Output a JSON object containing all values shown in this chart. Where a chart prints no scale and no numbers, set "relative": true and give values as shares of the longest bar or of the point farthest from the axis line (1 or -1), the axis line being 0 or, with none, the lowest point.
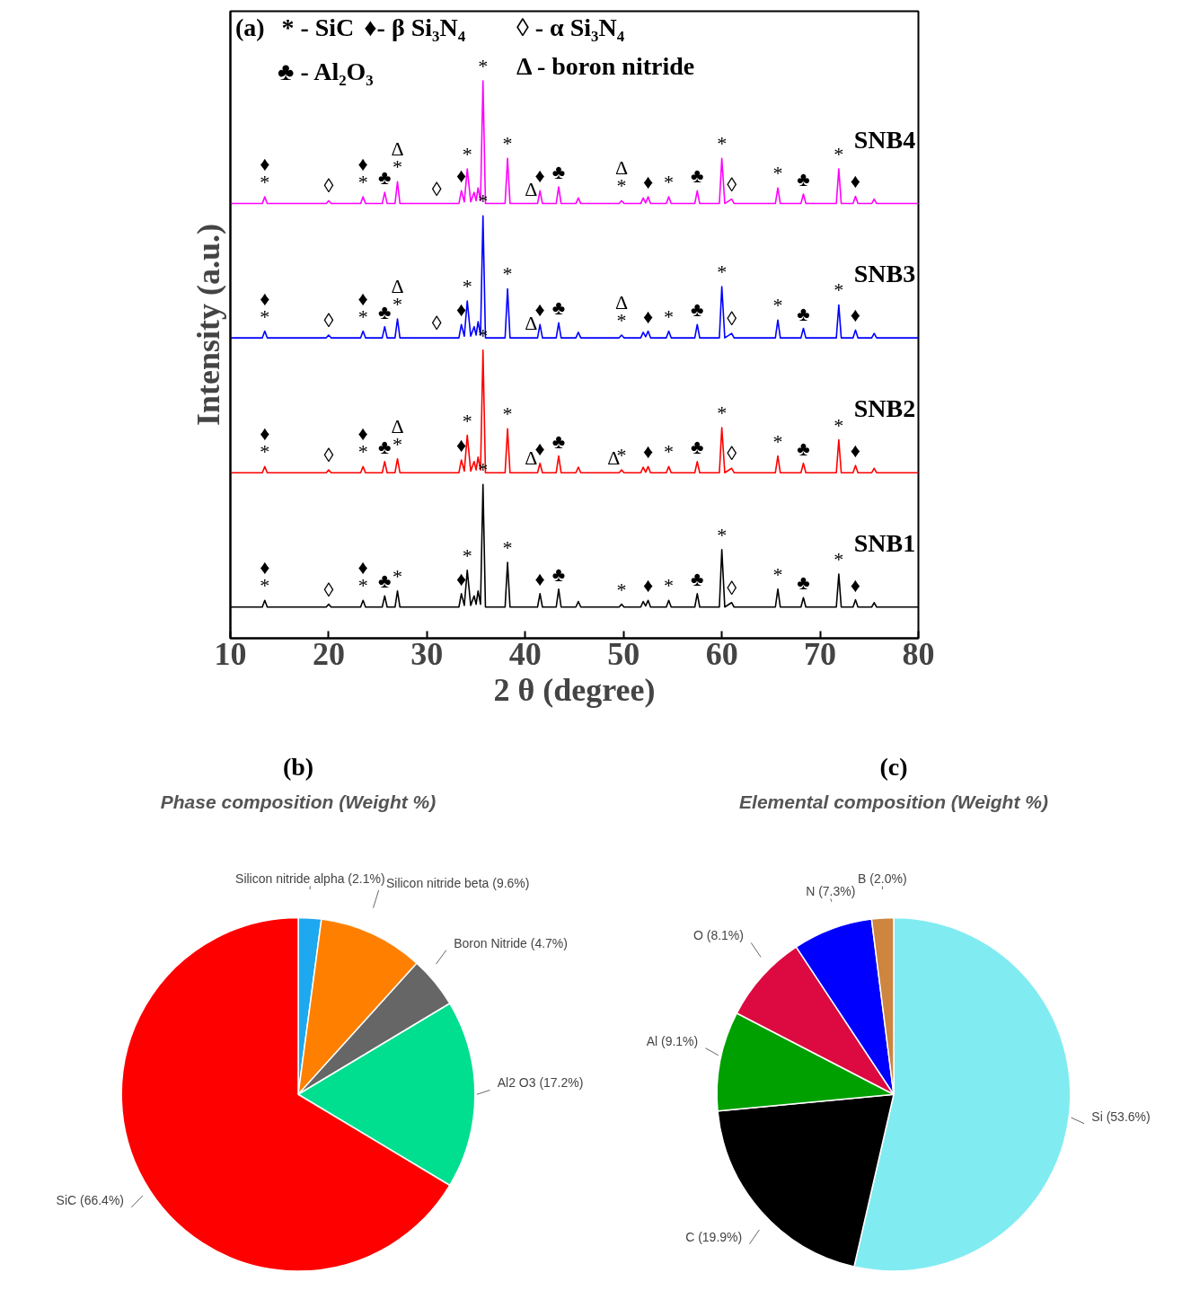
{
  "chart_data": [
    {
      "type": "line",
      "title": null,
      "xlabel": "2 θ (degree)",
      "ylabel": "Intensity (a.u.)",
      "relative": true,
      "grid": false,
      "xlim": [
        10,
        80
      ],
      "xticks": [
        10,
        20,
        30,
        40,
        50,
        60,
        70,
        80
      ],
      "x": [
        10,
        13.25,
        13.5,
        13.75,
        19.75,
        20,
        20.25,
        23.25,
        23.5,
        23.75,
        25.45,
        25.7,
        25.95,
        26.75,
        27,
        27.25,
        33.25,
        33.5,
        33.8,
        34.1,
        34.45,
        34.8,
        35.0,
        35.2,
        35.45,
        35.7,
        35.95,
        37.95,
        38.2,
        38.45,
        41.25,
        41.5,
        41.75,
        43.15,
        43.4,
        43.65,
        45.15,
        45.4,
        45.65,
        49.55,
        49.8,
        50.05,
        51.75,
        52,
        52.25,
        52.5,
        52.75,
        54.35,
        54.6,
        54.85,
        57.25,
        57.5,
        57.75,
        59.75,
        60,
        60.3,
        61,
        61.25,
        65.45,
        65.7,
        65.95,
        68.05,
        68.3,
        68.55,
        71.65,
        71.9,
        72.15,
        73.35,
        73.6,
        73.85,
        75.25,
        75.5,
        75.75,
        80
      ],
      "series": [
        {
          "name": "SNB1",
          "color": "#000000",
          "values": [
            0.056,
            0.056,
            0.068,
            0.056,
            0.056,
            0.061,
            0.056,
            0.056,
            0.068,
            0.056,
            0.056,
            0.076,
            0.056,
            0.056,
            0.085,
            0.056,
            0.056,
            0.08,
            0.059,
            0.122,
            0.059,
            0.076,
            0.061,
            0.085,
            0.061,
            0.276,
            0.056,
            0.056,
            0.136,
            0.056,
            0.056,
            0.08,
            0.056,
            0.056,
            0.088,
            0.056,
            0.056,
            0.066,
            0.056,
            0.056,
            0.061,
            0.056,
            0.056,
            0.066,
            0.058,
            0.068,
            0.056,
            0.056,
            0.068,
            0.056,
            0.056,
            0.08,
            0.056,
            0.056,
            0.159,
            0.056,
            0.064,
            0.056,
            0.056,
            0.088,
            0.056,
            0.056,
            0.073,
            0.056,
            0.056,
            0.115,
            0.056,
            0.056,
            0.069,
            0.056,
            0.056,
            0.064,
            0.056,
            0.056
          ]
        },
        {
          "name": "SNB2",
          "color": "#ff0000",
          "values": [
            0.297,
            0.297,
            0.308,
            0.297,
            0.297,
            0.302,
            0.297,
            0.297,
            0.308,
            0.297,
            0.297,
            0.317,
            0.297,
            0.297,
            0.322,
            0.297,
            0.297,
            0.32,
            0.3,
            0.364,
            0.3,
            0.317,
            0.302,
            0.325,
            0.302,
            0.517,
            0.297,
            0.297,
            0.376,
            0.297,
            0.297,
            0.314,
            0.297,
            0.297,
            0.327,
            0.297,
            0.297,
            0.307,
            0.297,
            0.297,
            0.302,
            0.297,
            0.297,
            0.307,
            0.298,
            0.308,
            0.297,
            0.297,
            0.308,
            0.297,
            0.297,
            0.317,
            0.297,
            0.297,
            0.378,
            0.297,
            0.305,
            0.297,
            0.297,
            0.327,
            0.297,
            0.297,
            0.314,
            0.297,
            0.297,
            0.356,
            0.297,
            0.297,
            0.31,
            0.297,
            0.297,
            0.305,
            0.297,
            0.297
          ]
        },
        {
          "name": "SNB3",
          "color": "#0000ff",
          "values": [
            0.539,
            0.539,
            0.551,
            0.539,
            0.539,
            0.544,
            0.539,
            0.539,
            0.551,
            0.539,
            0.539,
            0.559,
            0.539,
            0.539,
            0.573,
            0.539,
            0.539,
            0.563,
            0.542,
            0.605,
            0.542,
            0.559,
            0.544,
            0.568,
            0.544,
            0.758,
            0.539,
            0.539,
            0.627,
            0.539,
            0.539,
            0.563,
            0.539,
            0.539,
            0.566,
            0.539,
            0.539,
            0.549,
            0.539,
            0.539,
            0.544,
            0.539,
            0.539,
            0.549,
            0.541,
            0.551,
            0.539,
            0.539,
            0.551,
            0.539,
            0.539,
            0.563,
            0.539,
            0.539,
            0.631,
            0.539,
            0.547,
            0.539,
            0.539,
            0.571,
            0.539,
            0.539,
            0.556,
            0.539,
            0.539,
            0.598,
            0.539,
            0.539,
            0.553,
            0.539,
            0.539,
            0.547,
            0.539,
            0.539
          ]
        },
        {
          "name": "SNB4",
          "color": "#ff00ff",
          "values": [
            0.78,
            0.78,
            0.792,
            0.78,
            0.78,
            0.785,
            0.78,
            0.78,
            0.792,
            0.78,
            0.78,
            0.8,
            0.78,
            0.78,
            0.819,
            0.78,
            0.78,
            0.803,
            0.783,
            0.842,
            0.783,
            0.8,
            0.785,
            0.808,
            0.785,
            1.0,
            0.78,
            0.78,
            0.861,
            0.78,
            0.78,
            0.803,
            0.78,
            0.78,
            0.81,
            0.78,
            0.78,
            0.79,
            0.78,
            0.78,
            0.785,
            0.78,
            0.78,
            0.79,
            0.781,
            0.792,
            0.78,
            0.78,
            0.792,
            0.78,
            0.78,
            0.803,
            0.78,
            0.78,
            0.861,
            0.78,
            0.788,
            0.78,
            0.78,
            0.808,
            0.78,
            0.78,
            0.797,
            0.78,
            0.78,
            0.842,
            0.78,
            0.78,
            0.793,
            0.78,
            0.78,
            0.788,
            0.78,
            0.78
          ]
        }
      ],
      "annotations": [
        "(a)",
        "* - SiC",
        "♦- β Si₃N₄",
        "◊ - α Si₃N₄",
        "♣ - Al₂O₃",
        "Δ - boron nitride",
        {
          "text": "*",
          "x": 13.5,
          "y": 0.068
        },
        {
          "text": "♦",
          "x": 13.5,
          "y": 0.068
        },
        {
          "text": "◊",
          "x": 20,
          "y": 0.061
        },
        {
          "text": "*",
          "x": 23.5,
          "y": 0.068
        },
        {
          "text": "♦",
          "x": 23.5,
          "y": 0.068
        },
        {
          "text": "♣",
          "x": 25.7,
          "y": 0.076
        },
        {
          "text": "*",
          "x": 27,
          "y": 0.085
        },
        {
          "text": "♦",
          "x": 33.5,
          "y": 0.08
        },
        {
          "text": "*",
          "x": 34.1,
          "y": 0.122
        },
        {
          "text": "*",
          "x": 35.7,
          "y": 0.276
        },
        {
          "text": "*",
          "x": 38.2,
          "y": 0.136
        },
        {
          "text": "♦",
          "x": 41.5,
          "y": 0.08
        },
        {
          "text": "♣",
          "x": 43.4,
          "y": 0.088
        },
        {
          "text": "*",
          "x": 49.8,
          "y": 0.061
        },
        {
          "text": "♦",
          "x": 52.5,
          "y": 0.068
        },
        {
          "text": "*",
          "x": 54.6,
          "y": 0.068
        },
        {
          "text": "♣",
          "x": 57.5,
          "y": 0.08
        },
        {
          "text": "*",
          "x": 60,
          "y": 0.159
        },
        {
          "text": "◊",
          "x": 61,
          "y": 0.064
        },
        {
          "text": "*",
          "x": 65.7,
          "y": 0.088
        },
        {
          "text": "♣",
          "x": 68.3,
          "y": 0.073
        },
        {
          "text": "*",
          "x": 71.9,
          "y": 0.115
        },
        {
          "text": "♦",
          "x": 73.6,
          "y": 0.069
        },
        {
          "text": "*",
          "x": 13.5,
          "y": 0.308
        },
        {
          "text": "♦",
          "x": 13.5,
          "y": 0.308
        },
        {
          "text": "◊",
          "x": 20,
          "y": 0.302
        },
        {
          "text": "*",
          "x": 23.5,
          "y": 0.308
        },
        {
          "text": "♦",
          "x": 23.5,
          "y": 0.308
        },
        {
          "text": "♣",
          "x": 25.7,
          "y": 0.317
        },
        {
          "text": "*",
          "x": 27,
          "y": 0.322
        },
        {
          "text": "Δ",
          "x": 27,
          "y": 0.322
        },
        {
          "text": "♦",
          "x": 33.5,
          "y": 0.32
        },
        {
          "text": "*",
          "x": 34.1,
          "y": 0.364
        },
        {
          "text": "*",
          "x": 35.7,
          "y": 0.517
        },
        {
          "text": "*",
          "x": 38.2,
          "y": 0.376
        },
        {
          "text": "Δ",
          "x": 40.6,
          "y": 0.297
        },
        {
          "text": "♦",
          "x": 41.5,
          "y": 0.314
        },
        {
          "text": "♣",
          "x": 43.4,
          "y": 0.327
        },
        {
          "text": "Δ",
          "x": 49.0,
          "y": 0.297
        },
        {
          "text": "*",
          "x": 49.8,
          "y": 0.302
        },
        {
          "text": "♦",
          "x": 52.5,
          "y": 0.308
        },
        {
          "text": "*",
          "x": 54.6,
          "y": 0.308
        },
        {
          "text": "♣",
          "x": 57.5,
          "y": 0.317
        },
        {
          "text": "*",
          "x": 60,
          "y": 0.378
        },
        {
          "text": "◊",
          "x": 61,
          "y": 0.305
        },
        {
          "text": "*",
          "x": 65.7,
          "y": 0.327
        },
        {
          "text": "♣",
          "x": 68.3,
          "y": 0.314
        },
        {
          "text": "*",
          "x": 71.9,
          "y": 0.356
        },
        {
          "text": "♦",
          "x": 73.6,
          "y": 0.31
        },
        {
          "text": "*",
          "x": 13.5,
          "y": 0.551
        },
        {
          "text": "♦",
          "x": 13.5,
          "y": 0.551
        },
        {
          "text": "◊",
          "x": 20,
          "y": 0.544
        },
        {
          "text": "*",
          "x": 23.5,
          "y": 0.551
        },
        {
          "text": "♦",
          "x": 23.5,
          "y": 0.551
        },
        {
          "text": "♣",
          "x": 25.7,
          "y": 0.559
        },
        {
          "text": "*",
          "x": 27,
          "y": 0.573
        },
        {
          "text": "Δ",
          "x": 27,
          "y": 0.573
        },
        {
          "text": "◊",
          "x": 31.0,
          "y": 0.539
        },
        {
          "text": "♦",
          "x": 33.5,
          "y": 0.563
        },
        {
          "text": "*",
          "x": 34.1,
          "y": 0.605
        },
        {
          "text": "*",
          "x": 35.7,
          "y": 0.758
        },
        {
          "text": "*",
          "x": 38.2,
          "y": 0.627
        },
        {
          "text": "Δ",
          "x": 40.6,
          "y": 0.539
        },
        {
          "text": "♦",
          "x": 41.5,
          "y": 0.563
        },
        {
          "text": "♣",
          "x": 43.4,
          "y": 0.566
        },
        {
          "text": "*",
          "x": 49.8,
          "y": 0.544
        },
        {
          "text": "Δ",
          "x": 49.8,
          "y": 0.544
        },
        {
          "text": "♦",
          "x": 52.5,
          "y": 0.551
        },
        {
          "text": "*",
          "x": 54.6,
          "y": 0.551
        },
        {
          "text": "♣",
          "x": 57.5,
          "y": 0.563
        },
        {
          "text": "*",
          "x": 60,
          "y": 0.631
        },
        {
          "text": "◊",
          "x": 61,
          "y": 0.547
        },
        {
          "text": "*",
          "x": 65.7,
          "y": 0.571
        },
        {
          "text": "♣",
          "x": 68.3,
          "y": 0.556
        },
        {
          "text": "*",
          "x": 71.9,
          "y": 0.598
        },
        {
          "text": "♦",
          "x": 73.6,
          "y": 0.553
        },
        {
          "text": "*",
          "x": 13.5,
          "y": 0.792
        },
        {
          "text": "♦",
          "x": 13.5,
          "y": 0.792
        },
        {
          "text": "◊",
          "x": 20,
          "y": 0.785
        },
        {
          "text": "*",
          "x": 23.5,
          "y": 0.792
        },
        {
          "text": "♦",
          "x": 23.5,
          "y": 0.792
        },
        {
          "text": "♣",
          "x": 25.7,
          "y": 0.8
        },
        {
          "text": "*",
          "x": 27,
          "y": 0.819
        },
        {
          "text": "Δ",
          "x": 27,
          "y": 0.819
        },
        {
          "text": "◊",
          "x": 31.0,
          "y": 0.78
        },
        {
          "text": "♦",
          "x": 33.5,
          "y": 0.803
        },
        {
          "text": "*",
          "x": 34.1,
          "y": 0.842
        },
        {
          "text": "*",
          "x": 35.7,
          "y": 1.0
        },
        {
          "text": "*",
          "x": 38.2,
          "y": 0.861
        },
        {
          "text": "Δ",
          "x": 40.6,
          "y": 0.78
        },
        {
          "text": "♦",
          "x": 41.5,
          "y": 0.803
        },
        {
          "text": "♣",
          "x": 43.4,
          "y": 0.81
        },
        {
          "text": "*",
          "x": 49.8,
          "y": 0.785
        },
        {
          "text": "Δ",
          "x": 49.8,
          "y": 0.785
        },
        {
          "text": "♦",
          "x": 52.5,
          "y": 0.792
        },
        {
          "text": "*",
          "x": 54.6,
          "y": 0.792
        },
        {
          "text": "♣",
          "x": 57.5,
          "y": 0.803
        },
        {
          "text": "*",
          "x": 60,
          "y": 0.861
        },
        {
          "text": "◊",
          "x": 61,
          "y": 0.788
        },
        {
          "text": "*",
          "x": 65.7,
          "y": 0.808
        },
        {
          "text": "♣",
          "x": 68.3,
          "y": 0.797
        },
        {
          "text": "*",
          "x": 71.9,
          "y": 0.842
        },
        {
          "text": "♦",
          "x": 73.6,
          "y": 0.793
        }
      ]
    },
    {
      "type": "pie",
      "title": "(b)",
      "subtitle": "Phase composition (Weight %)",
      "categories": [
        "Silicon nitride alpha (2.1%)",
        "Silicon nitride beta (9.6%)",
        "Boron Nitride (4.7%)",
        "Al2 O3 (17.2%)",
        "SiC (66.4%)"
      ],
      "values": [
        2.1,
        9.6,
        4.7,
        17.2,
        66.4
      ],
      "colors": [
        "#1ea8f0",
        "#ff8000",
        "#666666",
        "#00de90",
        "#ff0000"
      ]
    },
    {
      "type": "pie",
      "title": "(c)",
      "subtitle": "Elemental composition (Weight %)",
      "categories": [
        "Si (53.6%)",
        "C (19.9%)",
        "Al (9.1%)",
        "O (8.1%)",
        "N (7.3%)",
        "B (2.0%)"
      ],
      "values": [
        53.6,
        19.9,
        9.1,
        8.1,
        7.3,
        2.0
      ],
      "colors": [
        "#80ecf2",
        "#000000",
        "#00a000",
        "#dc0a40",
        "#0000ff",
        "#cd853f"
      ]
    }
  ]
}
